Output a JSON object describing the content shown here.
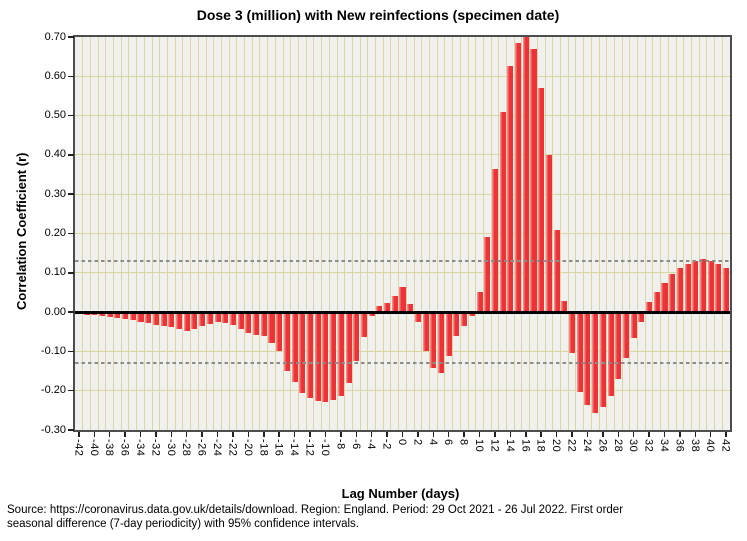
{
  "title": "Dose 3 (million) with New reinfections (specimen date)",
  "footer": {
    "line1": "Source: https://coronavirus.data.gov.uk/details/download. Region: England. Period: 29 Oct 2021 - 26 Jul 2022. First order",
    "line2": "seasonal difference (7-day periodicity) with 95% confidence intervals."
  },
  "colors": {
    "bar": "#ee3338",
    "bar_highlight": "#f4878a",
    "plot_bg": "#f0f0ee",
    "grid": "#d9d6a4",
    "frame": "#4d4d4d",
    "zero_line": "#000000",
    "ci_line": "#8c8c8c"
  },
  "chart_data": {
    "type": "bar",
    "title": "Dose 3 (million) with New reinfections (specimen date)",
    "xlabel": "Lag Number (days)",
    "ylabel": "Correlation Coefficient (r)",
    "ylim": [
      -0.3,
      0.7
    ],
    "grid": true,
    "ytick_labels": [
      "0.70",
      "0.60",
      "0.50",
      "0.40",
      "0.30",
      "0.20",
      "0.10",
      "0.00",
      "-0.10",
      "-0.20",
      "-0.30"
    ],
    "xtick_labels": [
      "-42",
      "-40",
      "-38",
      "-36",
      "-34",
      "-32",
      "-30",
      "-28",
      "-26",
      "-24",
      "-22",
      "-20",
      "-18",
      "-16",
      "-14",
      "-12",
      "-10",
      "-8",
      "-6",
      "-4",
      "-2",
      "0",
      "2",
      "4",
      "6",
      "8",
      "10",
      "12",
      "14",
      "16",
      "18",
      "20",
      "22",
      "24",
      "26",
      "28",
      "30",
      "32",
      "34",
      "36",
      "38",
      "40",
      "42"
    ],
    "confidence_interval": 0.13,
    "lags": [
      -42,
      -41,
      -40,
      -39,
      -38,
      -37,
      -36,
      -35,
      -34,
      -33,
      -32,
      -31,
      -30,
      -29,
      -28,
      -27,
      -26,
      -25,
      -24,
      -23,
      -22,
      -21,
      -20,
      -19,
      -18,
      -17,
      -16,
      -15,
      -14,
      -13,
      -12,
      -11,
      -10,
      -9,
      -8,
      -7,
      -6,
      -5,
      -4,
      -3,
      -2,
      -1,
      0,
      1,
      2,
      3,
      4,
      5,
      6,
      7,
      8,
      9,
      10,
      11,
      12,
      13,
      14,
      15,
      16,
      17,
      18,
      19,
      20,
      21,
      22,
      23,
      24,
      25,
      26,
      27,
      28,
      29,
      30,
      31,
      32,
      33,
      34,
      35,
      36,
      37,
      38,
      39,
      40,
      41,
      42
    ],
    "values": [
      -0.006,
      -0.008,
      -0.008,
      -0.01,
      -0.012,
      -0.015,
      -0.018,
      -0.021,
      -0.025,
      -0.028,
      -0.032,
      -0.035,
      -0.038,
      -0.042,
      -0.048,
      -0.044,
      -0.036,
      -0.03,
      -0.026,
      -0.028,
      -0.034,
      -0.043,
      -0.052,
      -0.058,
      -0.062,
      -0.078,
      -0.098,
      -0.15,
      -0.177,
      -0.205,
      -0.218,
      -0.226,
      -0.229,
      -0.223,
      -0.213,
      -0.18,
      -0.125,
      -0.064,
      -0.01,
      0.015,
      0.022,
      0.042,
      0.065,
      0.02,
      -0.026,
      -0.1,
      -0.143,
      -0.156,
      -0.112,
      -0.06,
      -0.036,
      -0.01,
      0.05,
      0.19,
      0.365,
      0.51,
      0.625,
      0.685,
      0.7,
      0.67,
      0.57,
      0.4,
      0.21,
      0.028,
      -0.105,
      -0.203,
      -0.237,
      -0.257,
      -0.242,
      -0.213,
      -0.17,
      -0.118,
      -0.067,
      -0.025,
      0.025,
      0.05,
      0.075,
      0.098,
      0.112,
      0.123,
      0.13,
      0.134,
      0.13,
      0.123,
      0.112
    ]
  }
}
